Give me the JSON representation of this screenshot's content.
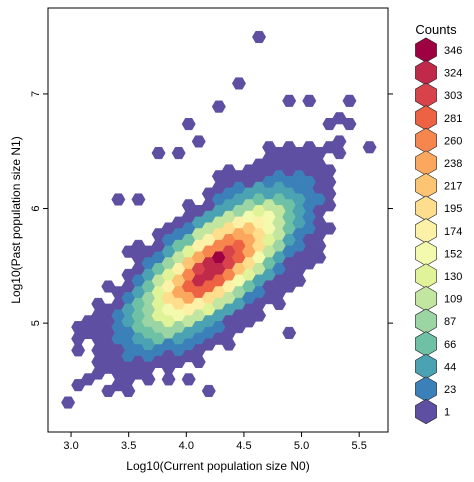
{
  "chart_data": {
    "type": "hexbin",
    "xlabel": "Log10(Current population size N0)",
    "ylabel": "Log10(Past population size N1)",
    "xlim": [
      2.8,
      5.75
    ],
    "ylim": [
      4.05,
      7.75
    ],
    "x_ticks": [
      "3.0",
      "3.5",
      "4.0",
      "4.5",
      "5.0",
      "5.5"
    ],
    "y_ticks": [
      "5",
      "6",
      "7"
    ],
    "legend": {
      "title": "Counts",
      "placement": "right",
      "levels": [
        "346",
        "324",
        "303",
        "281",
        "260",
        "238",
        "217",
        "195",
        "174",
        "152",
        "130",
        "109",
        "87",
        "66",
        "44",
        "23",
        "1"
      ],
      "colors": [
        "#9e0142",
        "#c0294a",
        "#d8424b",
        "#ee6244",
        "#f7864e",
        "#fba85e",
        "#fdc473",
        "#fedd8c",
        "#fdf1a8",
        "#f4faad",
        "#e1f399",
        "#c2e69f",
        "#9bd5a4",
        "#6fc1a5",
        "#4aa2b2",
        "#3b80b8",
        "#5e4fa2"
      ]
    },
    "density": {
      "center": [
        4.25,
        5.5
      ],
      "sd_x": 0.38,
      "sd_y": 0.35,
      "correlation": 0.72,
      "max_count": 346
    },
    "outliers": [
      [
        4.6,
        7.45
      ],
      [
        4.47,
        7.1
      ],
      [
        4.28,
        6.9
      ],
      [
        4.15,
        6.62
      ],
      [
        3.73,
        6.45
      ],
      [
        3.95,
        6.48
      ],
      [
        4.02,
        6.7
      ],
      [
        4.9,
        6.92
      ],
      [
        5.03,
        6.97
      ],
      [
        5.22,
        6.75
      ],
      [
        5.38,
        6.97
      ],
      [
        5.3,
        6.82
      ],
      [
        3.45,
        6.1
      ],
      [
        3.52,
        5.62
      ],
      [
        3.33,
        5.3
      ],
      [
        3.22,
        5.03
      ],
      [
        3.1,
        4.95
      ],
      [
        3.08,
        4.75
      ],
      [
        3.02,
        4.45
      ],
      [
        2.97,
        4.3
      ],
      [
        3.33,
        4.4
      ],
      [
        3.2,
        4.6
      ],
      [
        3.62,
        4.62
      ],
      [
        4.22,
        4.42
      ],
      [
        3.98,
        4.48
      ],
      [
        4.93,
        4.93
      ],
      [
        5.55,
        6.55
      ],
      [
        5.43,
        6.7
      ],
      [
        4.85,
        5.5
      ],
      [
        5.05,
        5.6
      ],
      [
        4.72,
        5.95
      ],
      [
        3.62,
        6.05
      ]
    ]
  }
}
